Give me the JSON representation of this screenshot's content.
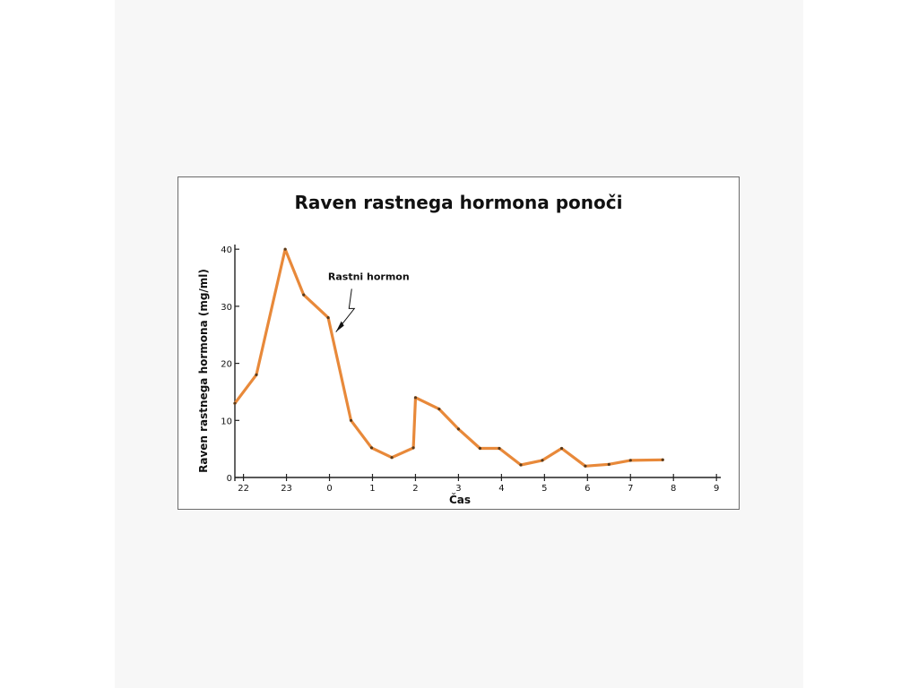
{
  "chart_data": {
    "type": "line",
    "title": "Raven rastnega hormona ponoči",
    "xlabel": "Čas",
    "ylabel": "Raven rastnega hormona (mg/ml)",
    "x_ticks": [
      {
        "value": 22,
        "label": "22"
      },
      {
        "value": 23,
        "label": "23"
      },
      {
        "value": 24,
        "label": "0"
      },
      {
        "value": 25,
        "label": "1"
      },
      {
        "value": 26,
        "label": "2"
      },
      {
        "value": 27,
        "label": "3"
      },
      {
        "value": 28,
        "label": "4"
      },
      {
        "value": 29,
        "label": "5"
      },
      {
        "value": 30,
        "label": "6"
      },
      {
        "value": 31,
        "label": "7"
      },
      {
        "value": 32,
        "label": "8"
      },
      {
        "value": 33,
        "label": "9"
      }
    ],
    "y_ticks": [
      {
        "value": 0,
        "label": "0"
      },
      {
        "value": 10,
        "label": "10"
      },
      {
        "value": 20,
        "label": "20"
      },
      {
        "value": 30,
        "label": "30"
      },
      {
        "value": 40,
        "label": "40"
      }
    ],
    "xlim": [
      21.8,
      33.1
    ],
    "ylim": [
      0,
      40.5
    ],
    "grid": false,
    "series": [
      {
        "name": "",
        "color": "#e8893a",
        "points": [
          [
            21.8,
            13
          ],
          [
            22.3,
            18
          ],
          [
            22.97,
            40
          ],
          [
            23.4,
            32
          ],
          [
            23.97,
            28
          ],
          [
            24.5,
            10
          ],
          [
            24.98,
            5.2
          ],
          [
            25.45,
            3.5
          ],
          [
            25.95,
            5.2
          ],
          [
            26.0,
            14
          ],
          [
            26.55,
            12
          ],
          [
            27.0,
            8.5
          ],
          [
            27.5,
            5.1
          ],
          [
            27.95,
            5.1
          ],
          [
            28.45,
            2.2
          ],
          [
            28.95,
            3.0
          ],
          [
            29.4,
            5.1
          ],
          [
            29.95,
            2.0
          ],
          [
            30.5,
            2.3
          ],
          [
            31.0,
            3.0
          ],
          [
            31.75,
            3.1
          ]
        ]
      }
    ],
    "annotations": [
      {
        "text": "Rastni hormon",
        "x": 24.6,
        "y": 34,
        "arrow_to": [
          24.15,
          25.5
        ]
      }
    ]
  }
}
